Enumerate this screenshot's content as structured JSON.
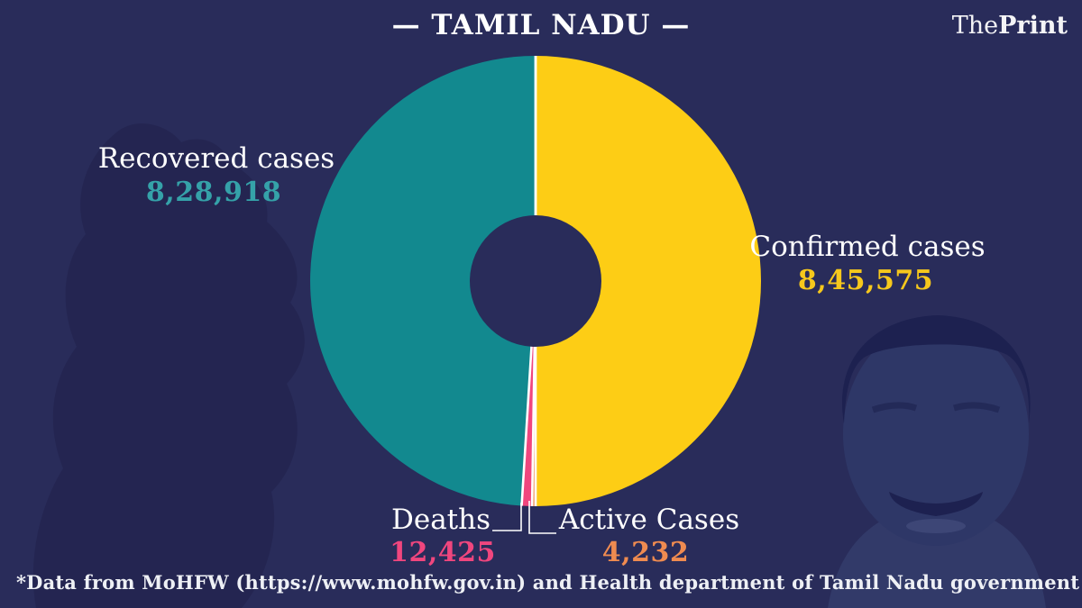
{
  "brand": {
    "the": "The",
    "print": "Print"
  },
  "chart_data": {
    "type": "pie",
    "variant": "donut",
    "title": "— TAMIL NADU —",
    "direction": "clockwise",
    "start_angle_deg": 0,
    "center": [
      594,
      312
    ],
    "outer_radius": 250,
    "inner_radius": 73,
    "separator_color": "#ffffff",
    "slices": [
      {
        "name": "Confirmed cases",
        "value": 845575,
        "display": "8,45,575",
        "color": "#fdcd15"
      },
      {
        "name": "Active Cases",
        "value": 4232,
        "display": "4,232",
        "color": "#ef8b50"
      },
      {
        "name": "Deaths",
        "value": 12425,
        "display": "12,425",
        "color": "#f0467e"
      },
      {
        "name": "Recovered cases",
        "value": 828918,
        "display": "8,28,918",
        "color": "#12898f"
      }
    ]
  },
  "labels": {
    "recovered": {
      "title": "Recovered cases",
      "value": "8,28,918"
    },
    "confirmed": {
      "title": "Confirmed cases",
      "value": "8,45,575"
    },
    "deaths": {
      "title": "Deaths",
      "value": "12,425"
    },
    "active": {
      "title": "Active Cases",
      "value": "4,232"
    }
  },
  "footer": {
    "source_note": "*Data from MoHFW (https://www.mohfw.gov.in) and Health department of Tamil Nadu government"
  },
  "colors": {
    "background": "#292c5a",
    "map_silhouette": "#232550",
    "portrait_skin": "#2e3767",
    "portrait_hair": "#1d2150",
    "teal": "#12898f",
    "yellow": "#fdcd15",
    "pink": "#f0467e",
    "orange": "#ef8b50",
    "text": "#ffffff"
  }
}
